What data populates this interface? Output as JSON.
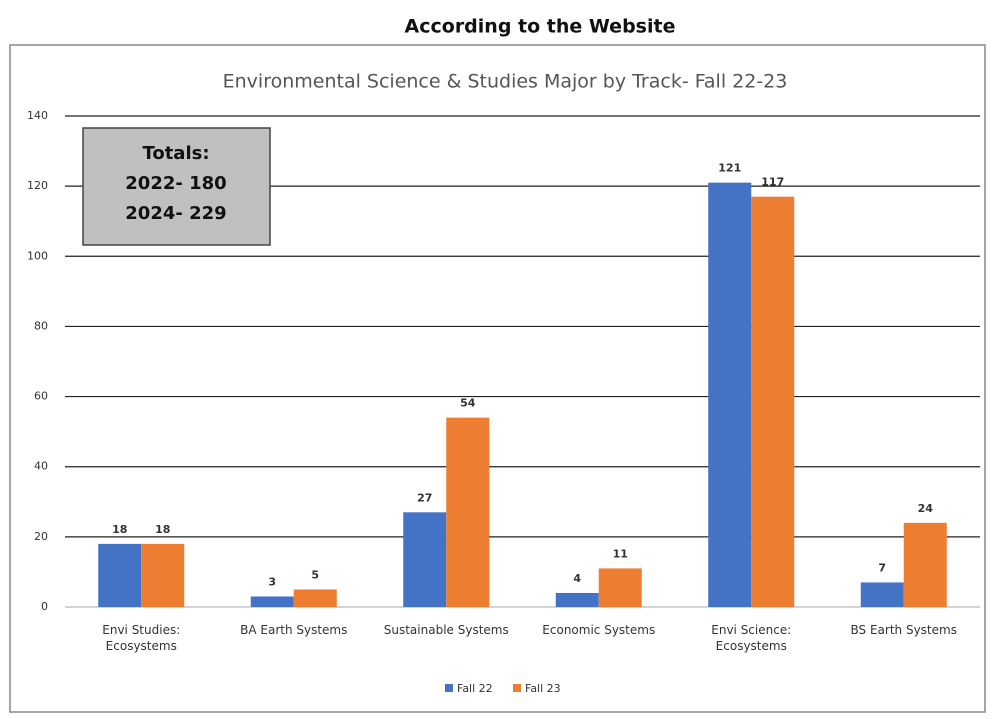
{
  "header": {
    "title": "According to the Website"
  },
  "chart_data": {
    "type": "bar",
    "title": "Environmental Science & Studies Major by Track- Fall 22-23",
    "categories": [
      "Envi Studies:\nEcosystems",
      "BA Earth Systems",
      "Sustainable Systems",
      "Economic Systems",
      "Envi Science:\nEcosystems",
      "BS Earth Systems"
    ],
    "series": [
      {
        "name": "Fall 22",
        "color": "#4472c4",
        "values": [
          18,
          3,
          27,
          4,
          121,
          7
        ]
      },
      {
        "name": "Fall 23",
        "color": "#ed7d31",
        "values": [
          18,
          5,
          54,
          11,
          117,
          24
        ]
      }
    ],
    "ylim": [
      0,
      140
    ],
    "yticks": [
      0,
      20,
      40,
      60,
      80,
      100,
      120,
      140
    ],
    "grid": true,
    "annotations": [
      "Totals:",
      "2022- 180",
      "2024- 229"
    ],
    "legend": "bottom"
  }
}
